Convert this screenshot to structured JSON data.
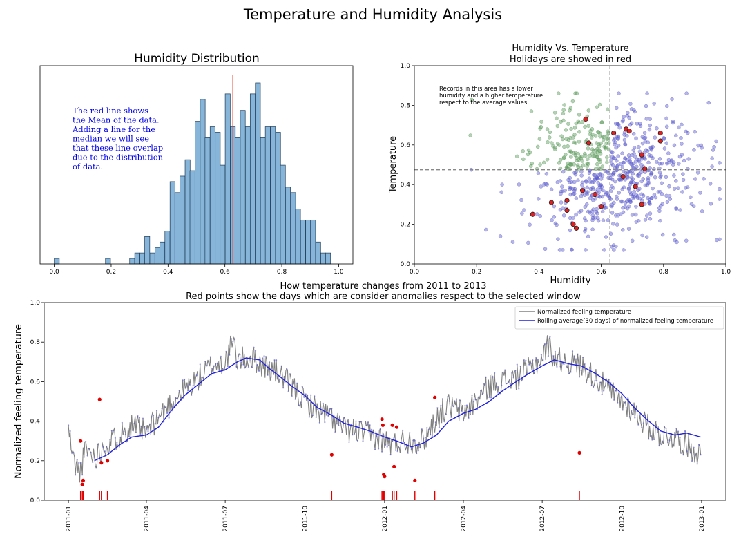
{
  "figure": {
    "title": "Temperature and Humidity Analysis"
  },
  "chart_data": [
    {
      "id": "histogram",
      "type": "histogram",
      "title": "Humidity Distribution",
      "xlabel": "",
      "ylabel": "",
      "xlim": [
        -0.05,
        1.05
      ],
      "xticks": [
        "0.0",
        "0.2",
        "0.4",
        "0.6",
        "0.8",
        "1.0"
      ],
      "yticks_shown": false,
      "bin_width": 0.01765,
      "bins": [
        {
          "x": 0.0,
          "count": 1
        },
        {
          "x": 0.18,
          "count": 1
        },
        {
          "x": 0.265,
          "count": 1
        },
        {
          "x": 0.283,
          "count": 2
        },
        {
          "x": 0.301,
          "count": 2
        },
        {
          "x": 0.318,
          "count": 5
        },
        {
          "x": 0.336,
          "count": 2
        },
        {
          "x": 0.354,
          "count": 3
        },
        {
          "x": 0.371,
          "count": 4
        },
        {
          "x": 0.389,
          "count": 6
        },
        {
          "x": 0.407,
          "count": 15
        },
        {
          "x": 0.424,
          "count": 13
        },
        {
          "x": 0.442,
          "count": 16
        },
        {
          "x": 0.46,
          "count": 19
        },
        {
          "x": 0.477,
          "count": 17
        },
        {
          "x": 0.495,
          "count": 26
        },
        {
          "x": 0.513,
          "count": 30
        },
        {
          "x": 0.53,
          "count": 23
        },
        {
          "x": 0.548,
          "count": 25
        },
        {
          "x": 0.566,
          "count": 24
        },
        {
          "x": 0.583,
          "count": 18
        },
        {
          "x": 0.601,
          "count": 31
        },
        {
          "x": 0.619,
          "count": 25
        },
        {
          "x": 0.636,
          "count": 23
        },
        {
          "x": 0.654,
          "count": 28
        },
        {
          "x": 0.672,
          "count": 25
        },
        {
          "x": 0.689,
          "count": 31
        },
        {
          "x": 0.707,
          "count": 33
        },
        {
          "x": 0.725,
          "count": 23
        },
        {
          "x": 0.742,
          "count": 25
        },
        {
          "x": 0.76,
          "count": 25
        },
        {
          "x": 0.778,
          "count": 24
        },
        {
          "x": 0.795,
          "count": 18
        },
        {
          "x": 0.813,
          "count": 14
        },
        {
          "x": 0.831,
          "count": 13
        },
        {
          "x": 0.848,
          "count": 10
        },
        {
          "x": 0.866,
          "count": 8
        },
        {
          "x": 0.884,
          "count": 8
        },
        {
          "x": 0.901,
          "count": 8
        },
        {
          "x": 0.919,
          "count": 4
        },
        {
          "x": 0.937,
          "count": 2
        },
        {
          "x": 0.954,
          "count": 2
        }
      ],
      "mean_line": 0.628,
      "annotation": [
        "The red line shows",
        "the Mean of the data.",
        "Adding a line for the",
        "median we will see",
        "that these line overlap",
        "due to the distribution",
        "of data."
      ],
      "colors": {
        "bars": "#86b5d9",
        "edge": "#1f3b57",
        "mean": "#e8483b",
        "annotation": "#0000ee"
      }
    },
    {
      "id": "scatter",
      "type": "scatter",
      "title": [
        "Humidity Vs. Temperature",
        "Holidays are showed in red"
      ],
      "xlabel": "Humidity",
      "ylabel": "Temperature",
      "xlim": [
        0,
        1
      ],
      "ylim": [
        0,
        1
      ],
      "xticks": [
        "0.0",
        "0.2",
        "0.4",
        "0.6",
        "0.8",
        "1.0"
      ],
      "yticks": [
        "0.0",
        "0.2",
        "0.4",
        "0.6",
        "0.8",
        "1.0"
      ],
      "mean_humidity": 0.628,
      "mean_temperature": 0.475,
      "annotation": [
        "Records in this area has a lower",
        "humidity and a higher temperature",
        "respect to the average values."
      ],
      "series": [
        {
          "name": "Holidays",
          "points": [
            [
              0.38,
              0.25
            ],
            [
              0.44,
              0.31
            ],
            [
              0.49,
              0.27
            ],
            [
              0.49,
              0.32
            ],
            [
              0.51,
              0.2
            ],
            [
              0.52,
              0.18
            ],
            [
              0.54,
              0.37
            ],
            [
              0.55,
              0.73
            ],
            [
              0.56,
              0.61
            ],
            [
              0.58,
              0.35
            ],
            [
              0.6,
              0.29
            ],
            [
              0.64,
              0.66
            ],
            [
              0.67,
              0.44
            ],
            [
              0.68,
              0.68
            ],
            [
              0.69,
              0.67
            ],
            [
              0.71,
              0.39
            ],
            [
              0.73,
              0.3
            ],
            [
              0.73,
              0.55
            ],
            [
              0.74,
              0.48
            ],
            [
              0.79,
              0.66
            ],
            [
              0.79,
              0.62
            ]
          ]
        }
      ],
      "colors": {
        "above_left": "#5a9a5a",
        "other": "#5c5ccc",
        "holiday": "#e02020",
        "mean_lines": "#888888"
      }
    },
    {
      "id": "timeseries",
      "type": "line",
      "title": [
        "How temperature changes from 2011 to 2013",
        "Red points show the days which are consider anomalies respect to the selected window"
      ],
      "xlabel": "",
      "ylabel": "Normalized feeling temperature",
      "xlim": [
        "2010-12-04",
        "2013-01-29"
      ],
      "ylim": [
        0,
        1
      ],
      "xticks": [
        "2011-01",
        "2011-04",
        "2011-07",
        "2011-10",
        "2012-01",
        "2012-04",
        "2012-07",
        "2012-10",
        "2013-01"
      ],
      "yticks": [
        "0.0",
        "0.2",
        "0.4",
        "0.6",
        "0.8",
        "1.0"
      ],
      "legend": {
        "position": "upper-right",
        "entries": [
          "Normalized feeling temperature",
          "Rolling average(30 days) of normalized feeling temperature"
        ]
      },
      "series": [
        {
          "name": "Normalized feeling temperature",
          "type": "line",
          "color": "#808080",
          "values": [
            [
              "2011-01-01",
              0.36
            ],
            [
              "2011-01-07",
              0.2
            ],
            [
              "2011-01-14",
              0.14
            ],
            [
              "2011-01-21",
              0.26
            ],
            [
              "2011-02-01",
              0.22
            ],
            [
              "2011-02-10",
              0.27
            ],
            [
              "2011-02-20",
              0.3
            ],
            [
              "2011-03-01",
              0.33
            ],
            [
              "2011-03-15",
              0.38
            ],
            [
              "2011-04-01",
              0.34
            ],
            [
              "2011-04-15",
              0.42
            ],
            [
              "2011-05-01",
              0.5
            ],
            [
              "2011-05-15",
              0.56
            ],
            [
              "2011-06-01",
              0.62
            ],
            [
              "2011-06-15",
              0.68
            ],
            [
              "2011-07-01",
              0.7
            ],
            [
              "2011-07-10",
              0.8
            ],
            [
              "2011-07-15",
              0.71
            ],
            [
              "2011-08-01",
              0.72
            ],
            [
              "2011-08-15",
              0.68
            ],
            [
              "2011-09-01",
              0.64
            ],
            [
              "2011-09-15",
              0.58
            ],
            [
              "2011-10-01",
              0.5
            ],
            [
              "2011-10-15",
              0.46
            ],
            [
              "2011-11-01",
              0.42
            ],
            [
              "2011-11-15",
              0.36
            ],
            [
              "2011-12-01",
              0.35
            ],
            [
              "2011-12-15",
              0.33
            ],
            [
              "2012-01-01",
              0.3
            ],
            [
              "2012-01-10",
              0.28
            ],
            [
              "2012-01-20",
              0.3
            ],
            [
              "2012-02-01",
              0.3
            ],
            [
              "2012-02-15",
              0.3
            ],
            [
              "2012-03-01",
              0.42
            ],
            [
              "2012-03-15",
              0.48
            ],
            [
              "2012-04-01",
              0.44
            ],
            [
              "2012-04-15",
              0.5
            ],
            [
              "2012-05-01",
              0.58
            ],
            [
              "2012-05-15",
              0.6
            ],
            [
              "2012-06-01",
              0.62
            ],
            [
              "2012-06-15",
              0.66
            ],
            [
              "2012-07-01",
              0.72
            ],
            [
              "2012-07-08",
              0.79
            ],
            [
              "2012-07-15",
              0.72
            ],
            [
              "2012-08-01",
              0.7
            ],
            [
              "2012-08-15",
              0.68
            ],
            [
              "2012-09-01",
              0.62
            ],
            [
              "2012-09-15",
              0.56
            ],
            [
              "2012-10-01",
              0.5
            ],
            [
              "2012-10-15",
              0.45
            ],
            [
              "2012-11-01",
              0.37
            ],
            [
              "2012-11-15",
              0.33
            ],
            [
              "2012-12-01",
              0.32
            ],
            [
              "2012-12-15",
              0.28
            ],
            [
              "2012-12-31",
              0.23
            ]
          ]
        },
        {
          "name": "Rolling average(30 days) of normalized feeling temperature",
          "type": "line",
          "color": "#1f1fe0",
          "values": [
            [
              "2011-01-31",
              0.2
            ],
            [
              "2011-02-15",
              0.23
            ],
            [
              "2011-03-01",
              0.28
            ],
            [
              "2011-03-15",
              0.32
            ],
            [
              "2011-04-01",
              0.33
            ],
            [
              "2011-04-15",
              0.37
            ],
            [
              "2011-05-01",
              0.46
            ],
            [
              "2011-05-15",
              0.53
            ],
            [
              "2011-06-01",
              0.59
            ],
            [
              "2011-06-15",
              0.64
            ],
            [
              "2011-07-01",
              0.66
            ],
            [
              "2011-07-15",
              0.7
            ],
            [
              "2011-07-25",
              0.72
            ],
            [
              "2011-08-10",
              0.71
            ],
            [
              "2011-08-20",
              0.67
            ],
            [
              "2011-09-01",
              0.63
            ],
            [
              "2011-09-15",
              0.58
            ],
            [
              "2011-10-01",
              0.53
            ],
            [
              "2011-10-15",
              0.47
            ],
            [
              "2011-11-01",
              0.43
            ],
            [
              "2011-11-15",
              0.39
            ],
            [
              "2011-12-01",
              0.37
            ],
            [
              "2011-12-15",
              0.35
            ],
            [
              "2012-01-01",
              0.32
            ],
            [
              "2012-01-15",
              0.3
            ],
            [
              "2012-02-01",
              0.27
            ],
            [
              "2012-02-15",
              0.29
            ],
            [
              "2012-03-01",
              0.33
            ],
            [
              "2012-03-15",
              0.4
            ],
            [
              "2012-04-01",
              0.44
            ],
            [
              "2012-04-15",
              0.46
            ],
            [
              "2012-05-01",
              0.5
            ],
            [
              "2012-05-15",
              0.55
            ],
            [
              "2012-06-01",
              0.6
            ],
            [
              "2012-06-15",
              0.64
            ],
            [
              "2012-07-01",
              0.68
            ],
            [
              "2012-07-15",
              0.71
            ],
            [
              "2012-08-01",
              0.69
            ],
            [
              "2012-08-15",
              0.68
            ],
            [
              "2012-09-01",
              0.64
            ],
            [
              "2012-09-15",
              0.6
            ],
            [
              "2012-10-01",
              0.54
            ],
            [
              "2012-10-15",
              0.47
            ],
            [
              "2012-11-01",
              0.4
            ],
            [
              "2012-11-15",
              0.35
            ],
            [
              "2012-12-01",
              0.33
            ],
            [
              "2012-12-15",
              0.34
            ],
            [
              "2012-12-31",
              0.32
            ]
          ]
        },
        {
          "name": "Anomalies",
          "type": "scatter",
          "color": "#e00000",
          "values": [
            [
              "2011-01-15",
              0.3
            ],
            [
              "2011-01-17",
              0.08
            ],
            [
              "2011-01-18",
              0.1
            ],
            [
              "2011-02-06",
              0.51
            ],
            [
              "2011-02-08",
              0.19
            ],
            [
              "2011-02-15",
              0.2
            ],
            [
              "2011-11-01",
              0.23
            ],
            [
              "2011-12-29",
              0.41
            ],
            [
              "2011-12-30",
              0.38
            ],
            [
              "2011-12-31",
              0.13
            ],
            [
              "2012-01-01",
              0.12
            ],
            [
              "2012-01-10",
              0.38
            ],
            [
              "2012-01-12",
              0.17
            ],
            [
              "2012-01-15",
              0.37
            ],
            [
              "2012-02-05",
              0.1
            ],
            [
              "2012-02-28",
              0.52
            ],
            [
              "2012-08-13",
              0.24
            ]
          ]
        }
      ]
    }
  ]
}
